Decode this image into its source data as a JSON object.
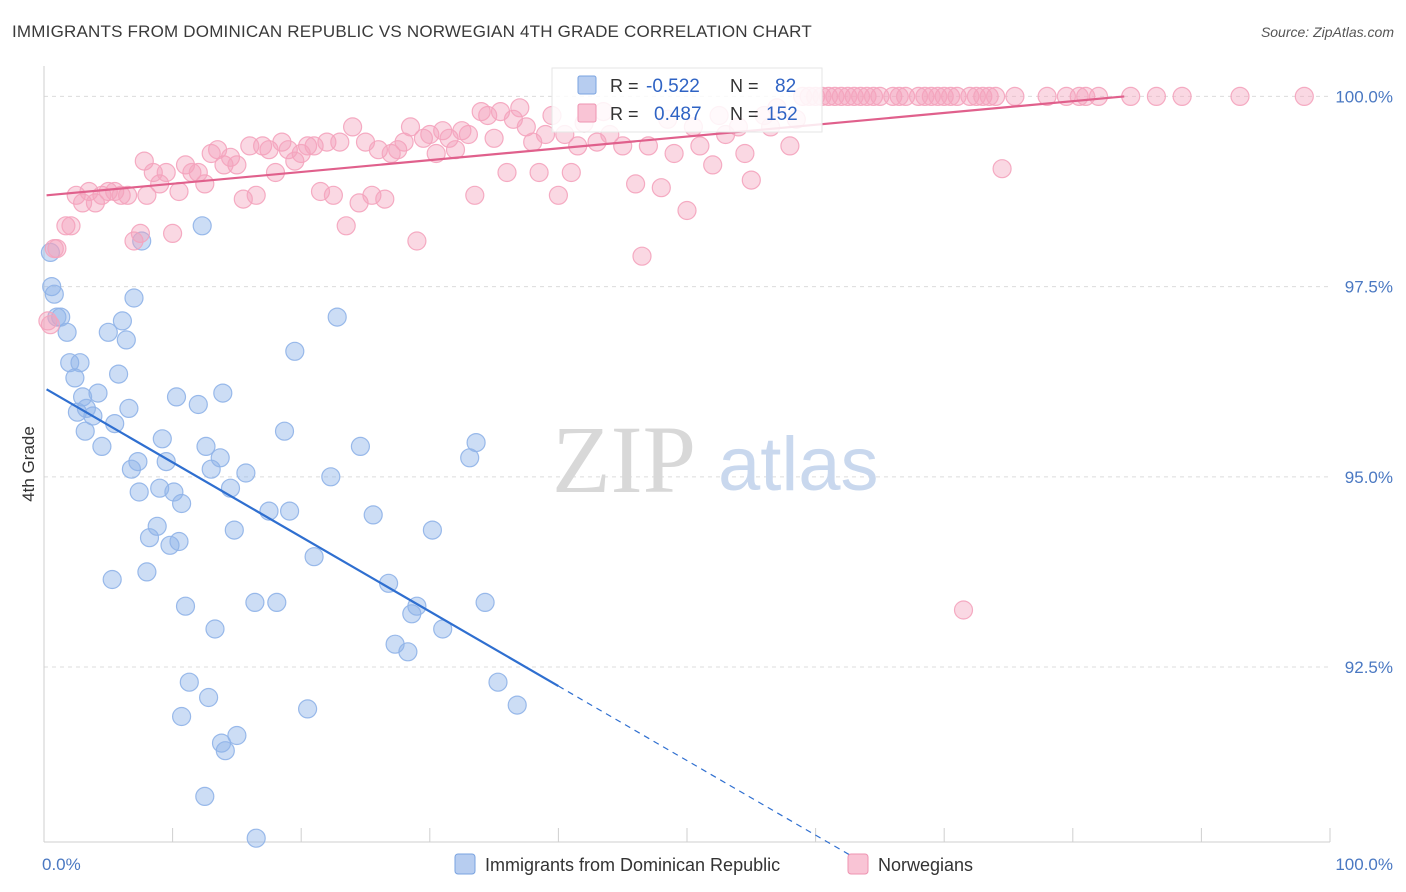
{
  "title": "IMMIGRANTS FROM DOMINICAN REPUBLIC VS NORWEGIAN 4TH GRADE CORRELATION CHART",
  "source": "Source: ZipAtlas.com",
  "watermark": {
    "zip": "ZIP",
    "atlas": "atlas"
  },
  "chart_data": {
    "type": "scatter",
    "xlabel": "",
    "ylabel": "4th Grade",
    "xlim": [
      0,
      100
    ],
    "ylim": [
      90.2,
      100.4
    ],
    "x_tick_labels": {
      "min": "0.0%",
      "max": "100.0%"
    },
    "y_ticks": [
      {
        "value": 92.5,
        "label": "92.5%"
      },
      {
        "value": 95.0,
        "label": "95.0%"
      },
      {
        "value": 97.5,
        "label": "97.5%"
      },
      {
        "value": 100.0,
        "label": "100.0%"
      }
    ],
    "grid": true,
    "legend_position": "top-center",
    "series": [
      {
        "name": "Immigrants from Dominican Republic",
        "color": "#8fb3e8",
        "line_color": "#2f6fd0",
        "stats": {
          "r_label": "R =",
          "r": "-0.522",
          "n_label": "N =",
          "n": "82"
        },
        "trend": {
          "x0": 0.2,
          "y0": 96.15,
          "x1": 40.0,
          "y1": 92.25,
          "dash_to_x": 63.0
        },
        "points": [
          [
            0.5,
            97.95
          ],
          [
            0.6,
            97.5
          ],
          [
            0.8,
            97.4
          ],
          [
            1.0,
            97.1
          ],
          [
            1.3,
            97.1
          ],
          [
            1.8,
            96.9
          ],
          [
            2.0,
            96.5
          ],
          [
            2.4,
            96.3
          ],
          [
            2.8,
            96.5
          ],
          [
            2.6,
            95.85
          ],
          [
            3.0,
            96.05
          ],
          [
            3.3,
            95.9
          ],
          [
            3.8,
            95.8
          ],
          [
            4.2,
            96.1
          ],
          [
            4.5,
            95.4
          ],
          [
            5.0,
            96.9
          ],
          [
            5.5,
            95.7
          ],
          [
            5.8,
            96.35
          ],
          [
            6.1,
            97.05
          ],
          [
            6.4,
            96.8
          ],
          [
            6.6,
            95.9
          ],
          [
            7.0,
            97.35
          ],
          [
            6.8,
            95.1
          ],
          [
            7.3,
            95.2
          ],
          [
            7.6,
            98.1
          ],
          [
            7.4,
            94.8
          ],
          [
            8.2,
            94.2
          ],
          [
            8.8,
            94.35
          ],
          [
            9.0,
            94.85
          ],
          [
            9.2,
            95.5
          ],
          [
            9.5,
            95.2
          ],
          [
            9.8,
            94.1
          ],
          [
            10.1,
            94.8
          ],
          [
            10.3,
            96.05
          ],
          [
            10.5,
            94.15
          ],
          [
            10.7,
            94.65
          ],
          [
            11.0,
            93.3
          ],
          [
            11.3,
            92.3
          ],
          [
            12.0,
            95.95
          ],
          [
            12.3,
            98.3
          ],
          [
            12.6,
            95.4
          ],
          [
            12.8,
            92.1
          ],
          [
            13.0,
            95.1
          ],
          [
            13.3,
            93.0
          ],
          [
            13.7,
            95.25
          ],
          [
            13.9,
            96.1
          ],
          [
            14.5,
            94.85
          ],
          [
            14.8,
            94.3
          ],
          [
            15.7,
            95.05
          ],
          [
            16.4,
            93.35
          ],
          [
            17.5,
            94.55
          ],
          [
            18.1,
            93.35
          ],
          [
            18.7,
            95.6
          ],
          [
            19.1,
            94.55
          ],
          [
            19.5,
            96.65
          ],
          [
            20.5,
            91.95
          ],
          [
            21.0,
            93.95
          ],
          [
            22.8,
            97.1
          ],
          [
            22.3,
            95.0
          ],
          [
            24.6,
            95.4
          ],
          [
            25.6,
            94.5
          ],
          [
            26.8,
            93.6
          ],
          [
            27.3,
            92.8
          ],
          [
            28.3,
            92.7
          ],
          [
            28.6,
            93.2
          ],
          [
            29.0,
            93.3
          ],
          [
            30.2,
            94.3
          ],
          [
            31.0,
            93.0
          ],
          [
            33.1,
            95.25
          ],
          [
            33.6,
            95.45
          ],
          [
            34.3,
            93.35
          ],
          [
            35.3,
            92.3
          ],
          [
            36.8,
            92.0
          ],
          [
            5.3,
            93.65
          ],
          [
            8.0,
            93.75
          ],
          [
            10.7,
            91.85
          ],
          [
            13.8,
            91.5
          ],
          [
            14.1,
            91.4
          ],
          [
            12.5,
            90.8
          ],
          [
            16.5,
            90.25
          ],
          [
            3.2,
            95.6
          ],
          [
            15.0,
            91.6
          ]
        ]
      },
      {
        "name": "Norwegians",
        "color": "#f4a3bd",
        "line_color": "#e0608c",
        "stats": {
          "r_label": "R =",
          "r": "0.487",
          "n_label": "N =",
          "n": "152"
        },
        "trend": {
          "x0": 0.2,
          "y0": 98.7,
          "x1": 84.0,
          "y1": 100.0
        },
        "points": [
          [
            0.3,
            97.05
          ],
          [
            0.5,
            97.0
          ],
          [
            0.8,
            98.0
          ],
          [
            1.0,
            98.0
          ],
          [
            1.7,
            98.3
          ],
          [
            2.1,
            98.3
          ],
          [
            2.5,
            98.7
          ],
          [
            3.0,
            98.6
          ],
          [
            3.5,
            98.75
          ],
          [
            4.0,
            98.6
          ],
          [
            4.5,
            98.7
          ],
          [
            5.0,
            98.75
          ],
          [
            5.5,
            98.75
          ],
          [
            6.0,
            98.7
          ],
          [
            6.5,
            98.7
          ],
          [
            7.0,
            98.1
          ],
          [
            7.5,
            98.2
          ],
          [
            8.0,
            98.7
          ],
          [
            7.8,
            99.15
          ],
          [
            8.5,
            99.0
          ],
          [
            9.0,
            98.85
          ],
          [
            9.5,
            99.0
          ],
          [
            10.0,
            98.2
          ],
          [
            10.5,
            98.75
          ],
          [
            11.0,
            99.1
          ],
          [
            11.5,
            99.0
          ],
          [
            12.0,
            99.0
          ],
          [
            12.5,
            98.85
          ],
          [
            13.0,
            99.25
          ],
          [
            13.5,
            99.3
          ],
          [
            14.0,
            99.1
          ],
          [
            14.5,
            99.2
          ],
          [
            15.0,
            99.1
          ],
          [
            15.5,
            98.65
          ],
          [
            16.0,
            99.35
          ],
          [
            16.5,
            98.7
          ],
          [
            17.0,
            99.35
          ],
          [
            17.5,
            99.3
          ],
          [
            18.0,
            99.0
          ],
          [
            18.5,
            99.4
          ],
          [
            19.0,
            99.3
          ],
          [
            19.5,
            99.15
          ],
          [
            20.0,
            99.25
          ],
          [
            20.5,
            99.35
          ],
          [
            21.0,
            99.35
          ],
          [
            21.5,
            98.75
          ],
          [
            22.0,
            99.4
          ],
          [
            22.5,
            98.7
          ],
          [
            23.0,
            99.4
          ],
          [
            23.5,
            98.3
          ],
          [
            24.0,
            99.6
          ],
          [
            24.5,
            98.6
          ],
          [
            25.0,
            99.4
          ],
          [
            25.5,
            98.7
          ],
          [
            26.0,
            99.3
          ],
          [
            26.5,
            98.65
          ],
          [
            27.0,
            99.25
          ],
          [
            27.5,
            99.3
          ],
          [
            28.0,
            99.4
          ],
          [
            28.5,
            99.6
          ],
          [
            29.0,
            98.1
          ],
          [
            29.5,
            99.45
          ],
          [
            30.0,
            99.5
          ],
          [
            30.5,
            99.25
          ],
          [
            31.0,
            99.55
          ],
          [
            31.5,
            99.45
          ],
          [
            32.0,
            99.3
          ],
          [
            32.5,
            99.55
          ],
          [
            33.0,
            99.5
          ],
          [
            33.5,
            98.7
          ],
          [
            34.0,
            99.8
          ],
          [
            34.5,
            99.75
          ],
          [
            35.0,
            99.45
          ],
          [
            35.5,
            99.8
          ],
          [
            36.0,
            99.0
          ],
          [
            36.5,
            99.7
          ],
          [
            37.0,
            99.85
          ],
          [
            37.5,
            99.6
          ],
          [
            38.0,
            99.4
          ],
          [
            38.5,
            99.0
          ],
          [
            39.0,
            99.5
          ],
          [
            39.5,
            99.75
          ],
          [
            40.0,
            98.7
          ],
          [
            40.5,
            99.5
          ],
          [
            41.0,
            99.0
          ],
          [
            41.5,
            99.35
          ],
          [
            42.0,
            99.65
          ],
          [
            43.0,
            99.4
          ],
          [
            43.5,
            99.8
          ],
          [
            44.0,
            99.5
          ],
          [
            45.0,
            99.35
          ],
          [
            46.0,
            98.85
          ],
          [
            46.5,
            97.9
          ],
          [
            47.0,
            99.35
          ],
          [
            48.0,
            98.8
          ],
          [
            48.5,
            99.7
          ],
          [
            49.0,
            99.25
          ],
          [
            50.0,
            98.5
          ],
          [
            51.0,
            99.35
          ],
          [
            52.0,
            99.1
          ],
          [
            53.0,
            99.5
          ],
          [
            54.0,
            99.6
          ],
          [
            55.0,
            98.9
          ],
          [
            56.0,
            99.75
          ],
          [
            57.0,
            99.85
          ],
          [
            58.0,
            99.35
          ],
          [
            59.0,
            100.0
          ],
          [
            60.0,
            100.0
          ],
          [
            61.0,
            100.0
          ],
          [
            62.0,
            100.0
          ],
          [
            63.0,
            100.0
          ],
          [
            64.0,
            100.0
          ],
          [
            65.0,
            100.0
          ],
          [
            66.0,
            100.0
          ],
          [
            67.0,
            100.0
          ],
          [
            68.0,
            100.0
          ],
          [
            69.0,
            100.0
          ],
          [
            70.0,
            100.0
          ],
          [
            71.0,
            100.0
          ],
          [
            71.5,
            93.25
          ],
          [
            72.0,
            100.0
          ],
          [
            73.0,
            100.0
          ],
          [
            74.0,
            100.0
          ],
          [
            74.5,
            99.05
          ],
          [
            75.5,
            100.0
          ],
          [
            78.0,
            100.0
          ],
          [
            80.5,
            100.0
          ],
          [
            82.0,
            100.0
          ],
          [
            84.5,
            100.0
          ],
          [
            86.5,
            100.0
          ],
          [
            88.5,
            100.0
          ],
          [
            93.0,
            100.0
          ],
          [
            98.0,
            100.0
          ],
          [
            63.5,
            100.0
          ],
          [
            64.5,
            100.0
          ],
          [
            66.5,
            100.0
          ],
          [
            68.5,
            100.0
          ],
          [
            61.5,
            100.0
          ],
          [
            60.5,
            100.0
          ],
          [
            62.5,
            100.0
          ],
          [
            59.5,
            100.0
          ],
          [
            69.5,
            100.0
          ],
          [
            70.5,
            100.0
          ],
          [
            72.5,
            100.0
          ],
          [
            73.5,
            100.0
          ],
          [
            79.5,
            100.0
          ],
          [
            81.0,
            100.0
          ],
          [
            58.5,
            99.7
          ],
          [
            56.5,
            99.6
          ],
          [
            54.5,
            99.25
          ],
          [
            52.5,
            99.75
          ],
          [
            50.5,
            99.6
          ]
        ]
      }
    ]
  }
}
